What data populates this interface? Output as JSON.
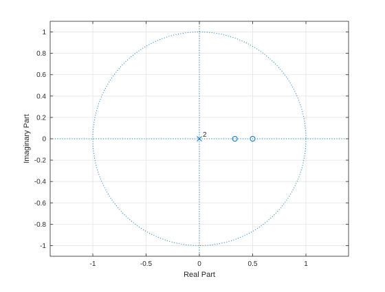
{
  "chart_data": {
    "type": "scatter",
    "title": "",
    "xlabel": "Real Part",
    "ylabel": "Imaginary Part",
    "xlim": [
      -1.4,
      1.4
    ],
    "ylim": [
      -1.1,
      1.1
    ],
    "grid": true,
    "x_ticks": [
      -1,
      -0.5,
      0,
      0.5,
      1
    ],
    "x_tick_labels": [
      "-1",
      "-0.5",
      "0",
      "0.5",
      "1"
    ],
    "y_ticks": [
      1,
      0.8,
      0.6,
      0.4,
      0.2,
      0,
      -0.2,
      -0.4,
      -0.6,
      -0.8,
      -1
    ],
    "y_tick_labels": [
      "1",
      "0.8",
      "0.6",
      "0.4",
      "0.2",
      "0",
      "-0.2",
      "-0.4",
      "-0.6",
      "-0.8",
      "-1"
    ],
    "unit_circle": true,
    "zeros": [
      {
        "real": 0.333,
        "imag": 0
      },
      {
        "real": 0.5,
        "imag": 0
      }
    ],
    "poles": [
      {
        "real": 0,
        "imag": 0,
        "multiplicity_label": "2"
      }
    ],
    "colors": {
      "marker": "#0072bd",
      "grid": "#e3e3e3",
      "axes": "#262626"
    }
  }
}
